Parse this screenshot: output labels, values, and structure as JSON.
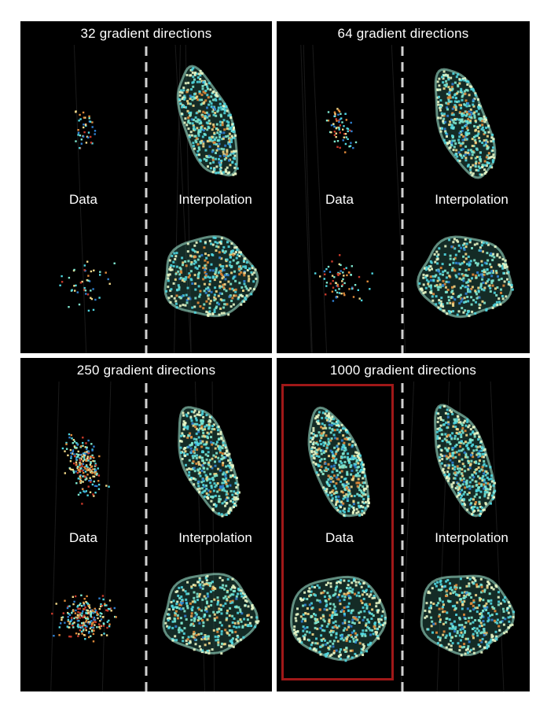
{
  "figure": {
    "panels": [
      {
        "id": "p32",
        "title": "32 gradient directions",
        "data_label": "Data",
        "interp_label": "Interpolation",
        "data_points": 32,
        "highlighted": false
      },
      {
        "id": "p64",
        "title": "64 gradient directions",
        "data_label": "Data",
        "interp_label": "Interpolation",
        "data_points": 64,
        "highlighted": false
      },
      {
        "id": "p250",
        "title": "250 gradient directions",
        "data_label": "Data",
        "interp_label": "Interpolation",
        "data_points": 250,
        "highlighted": false
      },
      {
        "id": "p1000",
        "title": "1000 gradient directions",
        "data_label": "Data",
        "interp_label": "Interpolation",
        "data_points": 1000,
        "highlighted": true
      }
    ],
    "colors": {
      "background": "#000000",
      "divider": "#d0d0d0",
      "highlight": "#a01818",
      "dot_palette": [
        "#4fd6e0",
        "#7fe8d0",
        "#f2d98a",
        "#e08a3a",
        "#2f7fd0",
        "#c83a2a"
      ]
    }
  }
}
